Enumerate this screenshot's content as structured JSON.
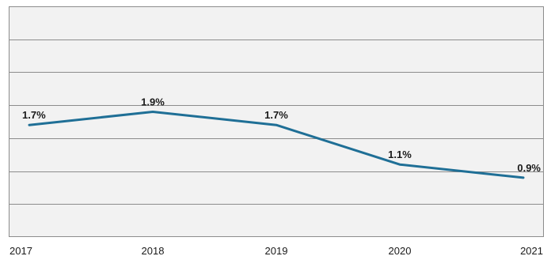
{
  "chart_data": {
    "type": "line",
    "title": "",
    "xlabel": "",
    "ylabel": "",
    "categories": [
      "2017",
      "2018",
      "2019",
      "2020",
      "2021"
    ],
    "series": [
      {
        "values": [
          1.7,
          1.9,
          1.7,
          1.1,
          0.9
        ],
        "labels": [
          "1.7%",
          "1.9%",
          "1.7%",
          "1.1%",
          "0.9%"
        ],
        "color": "#1f6f96"
      }
    ],
    "ylim": [
      0,
      3.5
    ],
    "grid": true,
    "legend": "none"
  }
}
